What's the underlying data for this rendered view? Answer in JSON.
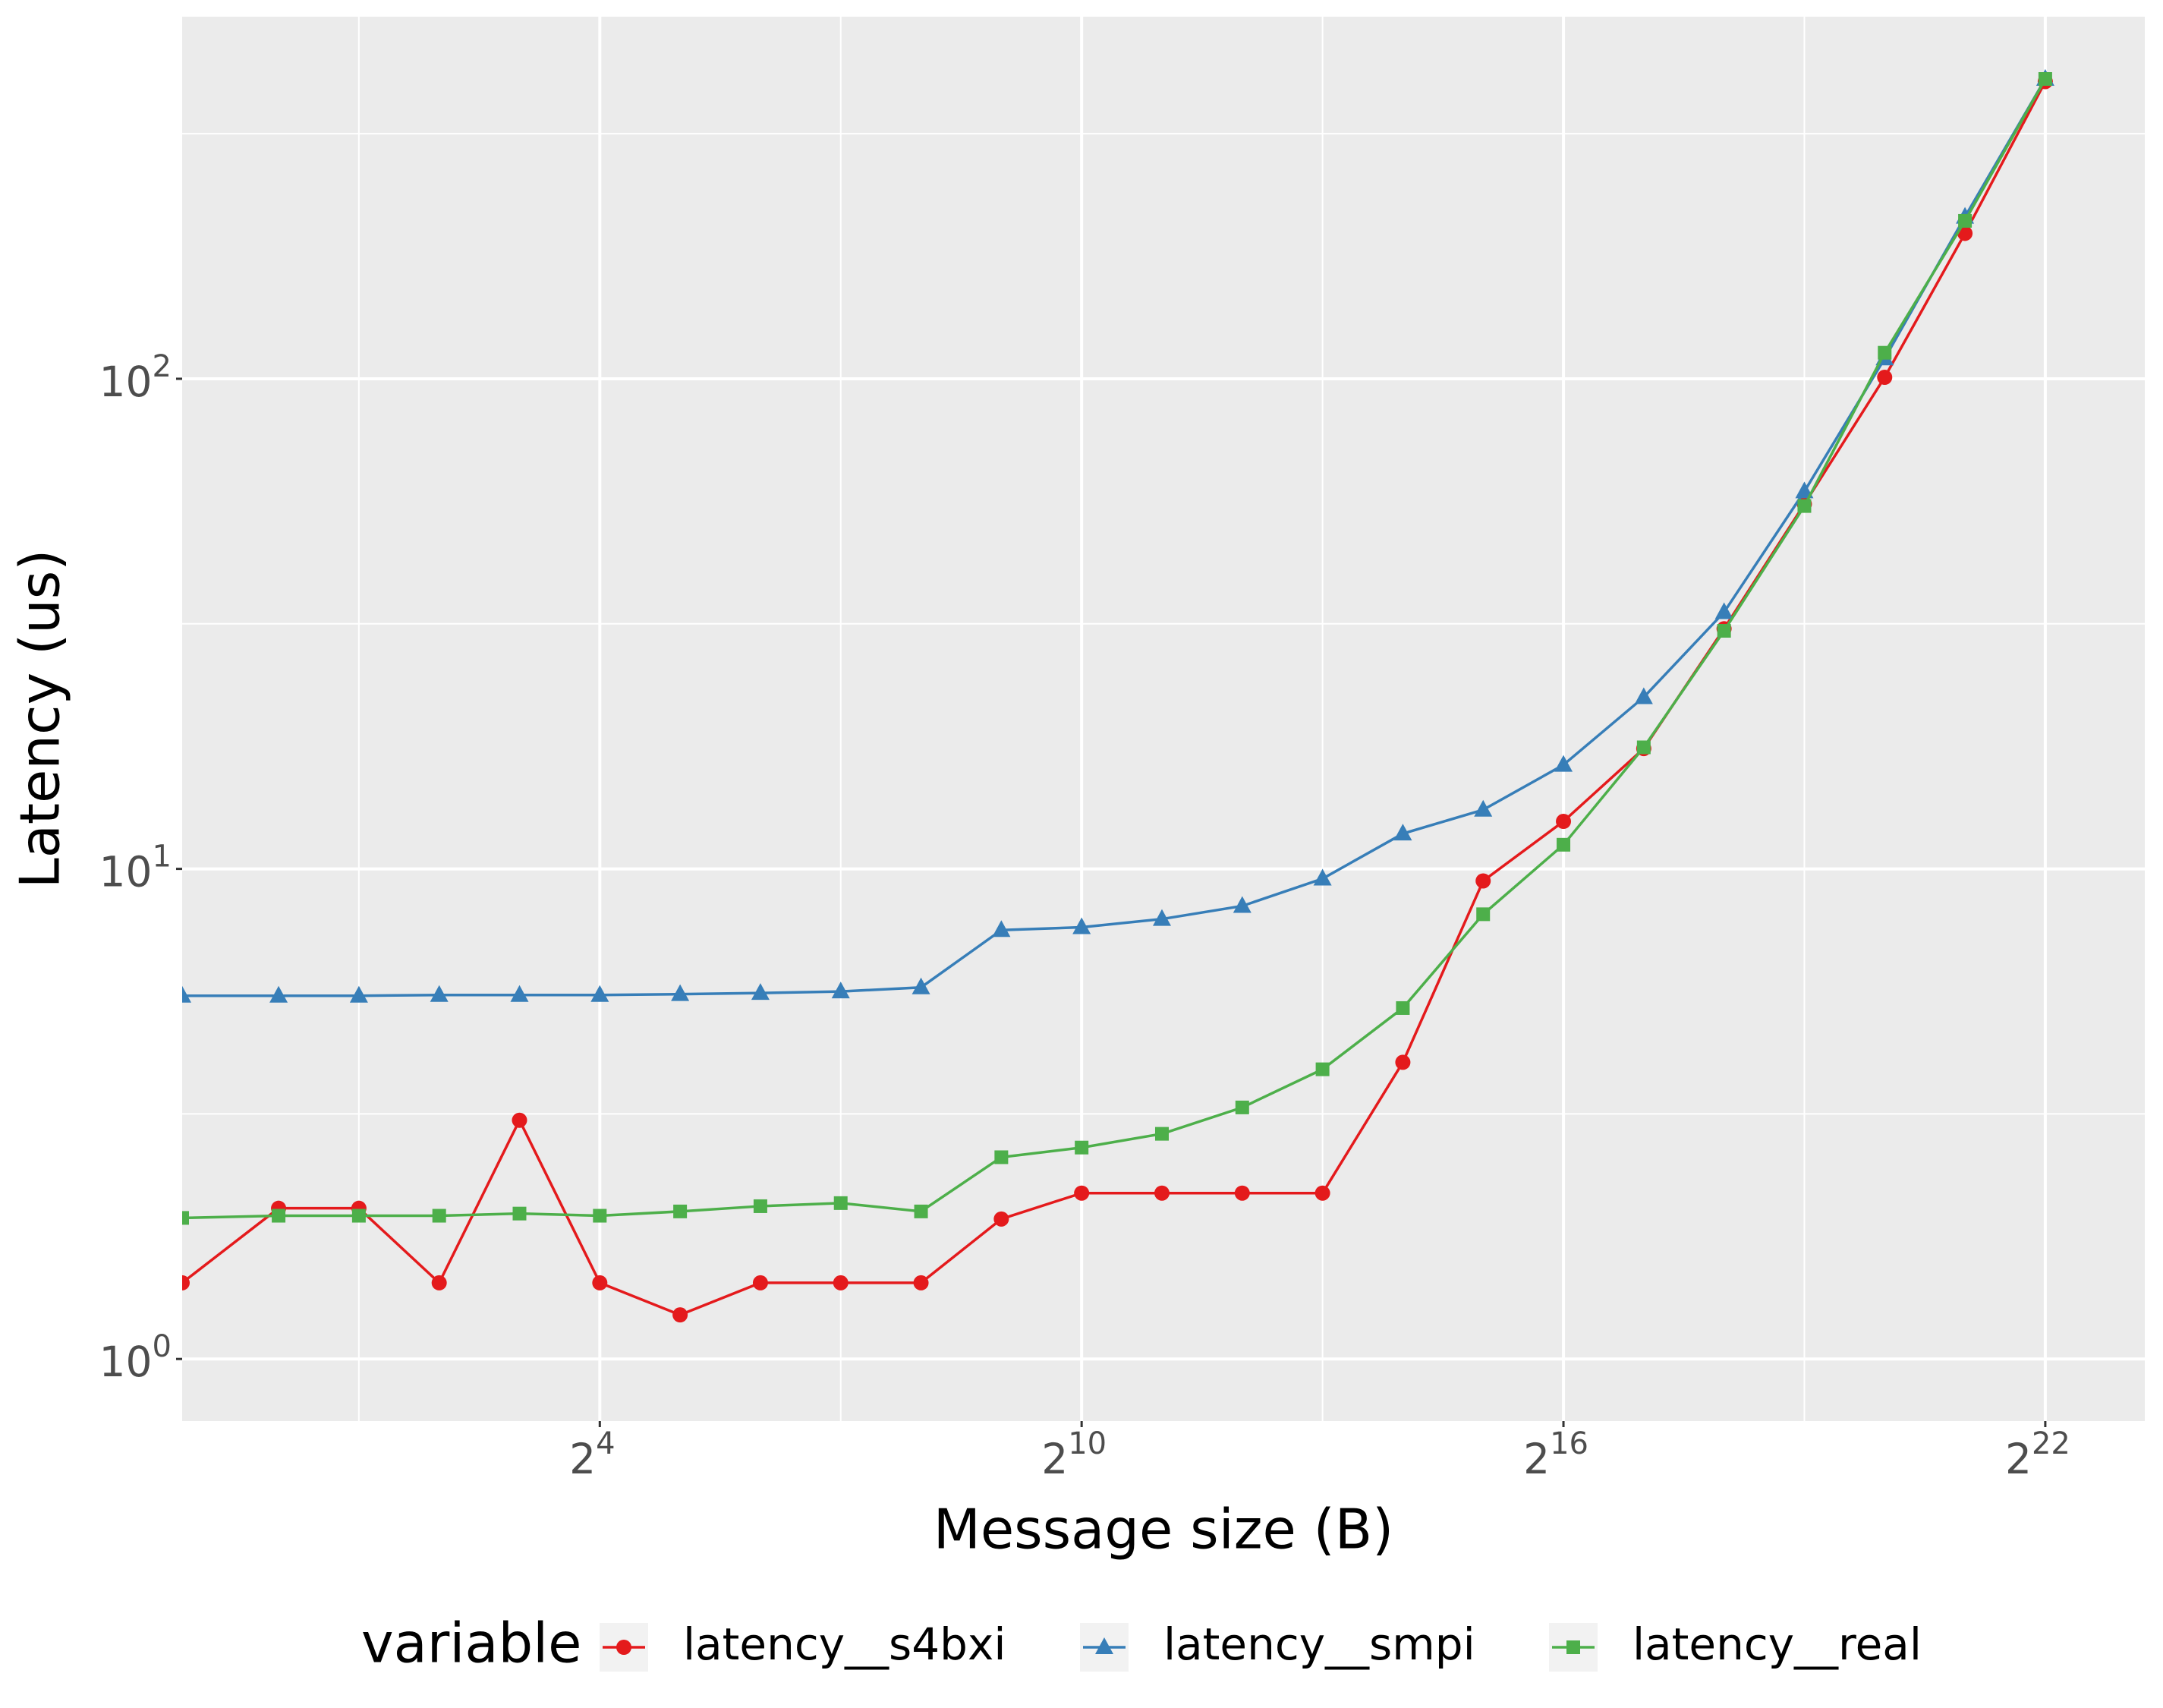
{
  "chart_data": {
    "type": "line",
    "x_label": "Message size (B)",
    "y_label": "Latency (us)",
    "x": [
      0.435,
      1,
      2,
      4,
      8,
      16,
      32,
      64,
      128,
      256,
      512,
      1024,
      2048,
      4096,
      8192,
      16384,
      32768,
      65536,
      131072,
      262144,
      524288,
      1048576,
      2097152,
      4194304
    ],
    "series": [
      {
        "name": "latency__s4bxi",
        "color": "#e41a1c",
        "marker": "circle",
        "values": [
          1.43,
          2.03,
          2.03,
          1.43,
          3.07,
          1.43,
          1.23,
          1.43,
          1.43,
          1.43,
          1.93,
          2.18,
          2.18,
          2.18,
          2.18,
          4.03,
          9.45,
          12.5,
          17.6,
          30.9,
          55.5,
          100.7,
          198,
          404
        ]
      },
      {
        "name": "latency__smpi",
        "color": "#377eb8",
        "marker": "triangle",
        "values": [
          5.51,
          5.51,
          5.51,
          5.53,
          5.53,
          5.53,
          5.55,
          5.58,
          5.62,
          5.73,
          7.5,
          7.6,
          7.9,
          8.4,
          9.55,
          11.8,
          13.2,
          16.3,
          22.4,
          33.4,
          58.9,
          110,
          214,
          409
        ]
      },
      {
        "name": "latency__real",
        "color": "#4daf4a",
        "marker": "square",
        "values": [
          1.94,
          1.96,
          1.96,
          1.96,
          1.98,
          1.96,
          2.0,
          2.05,
          2.08,
          2.0,
          2.58,
          2.7,
          2.88,
          3.26,
          3.9,
          5.2,
          8.08,
          11.2,
          17.7,
          30.6,
          55.0,
          113,
          210,
          409
        ]
      }
    ],
    "x_log_base": 2,
    "y_log_base": 10,
    "xlim": [
      0.435,
      9900000
    ],
    "ylim": [
      0.747,
      548
    ],
    "xticks": [
      {
        "value": 16,
        "label": "2^4"
      },
      {
        "value": 1024,
        "label": "2^10"
      },
      {
        "value": 65536,
        "label": "2^16"
      },
      {
        "value": 4194304,
        "label": "2^22"
      }
    ],
    "minor_xticks": [
      2,
      128,
      8192,
      524288
    ],
    "yticks": [
      {
        "value": 1,
        "label": "10^0"
      },
      {
        "value": 10,
        "label": "10^1"
      },
      {
        "value": 100,
        "label": "10^2"
      }
    ],
    "minor_yticks": [
      3.162,
      31.62,
      316.2
    ],
    "grid": true,
    "legend_title": "variable",
    "legend_position": "bottom"
  }
}
